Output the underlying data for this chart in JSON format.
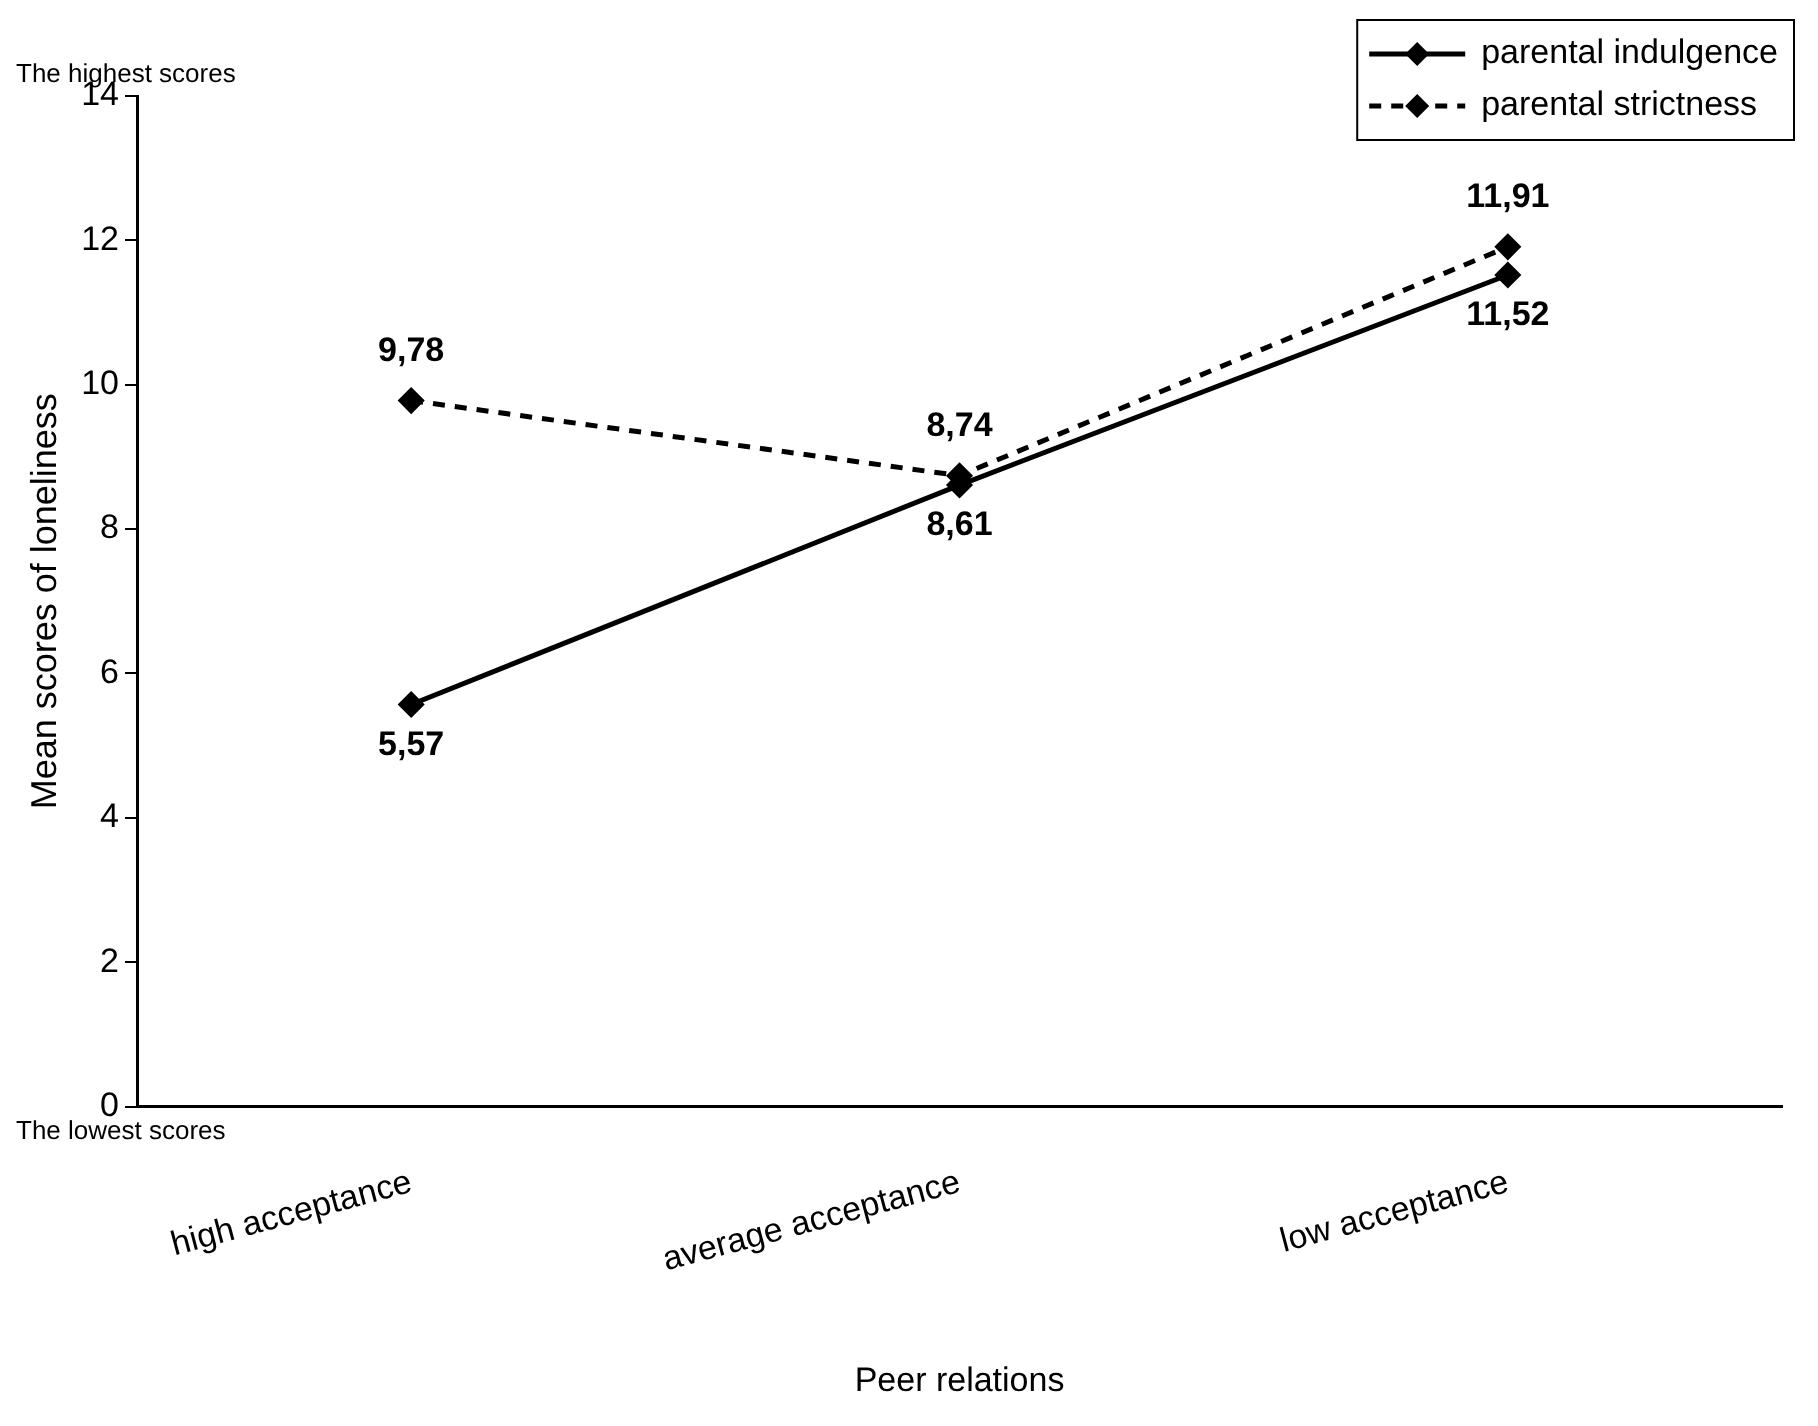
{
  "chart_data": {
    "type": "line",
    "xlabel": "Peer relations",
    "ylabel": "Mean scores of loneliness",
    "categories": [
      "high acceptance",
      "average acceptance",
      "low acceptance"
    ],
    "series": [
      {
        "name": "parental indulgence",
        "color": "#000000",
        "line_style": "solid",
        "values": [
          5.57,
          8.61,
          11.52
        ],
        "value_labels": [
          "5,57",
          "8,61",
          "11,52"
        ]
      },
      {
        "name": "parental strictness",
        "color": "#000000",
        "line_style": "dashed",
        "values": [
          9.78,
          8.74,
          11.91
        ],
        "value_labels": [
          "9,78",
          "8,74",
          "11,91"
        ]
      }
    ],
    "ylim": [
      0,
      14
    ],
    "yticks": [
      0,
      2,
      4,
      6,
      8,
      10,
      12,
      14
    ],
    "grid": false,
    "legend": "top right",
    "marker": "diamond",
    "annotations": [
      "The highest scores",
      "The lowest scores"
    ]
  }
}
